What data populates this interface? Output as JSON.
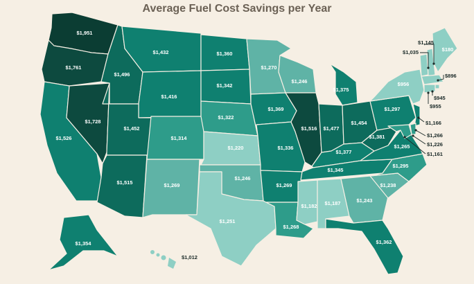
{
  "title": "Average Fuel Cost Savings per Year",
  "credit": "",
  "colors": {
    "background": "#f6efe4",
    "lightest": "#8ecfc4",
    "light": "#5fb3a6",
    "mid": "#2e9c8a",
    "dark": "#0f8070",
    "darker": "#0d6b5c",
    "darkest": "#0b3d33"
  },
  "states": [
    {
      "id": "WA",
      "label": "$1,951"
    },
    {
      "id": "OR",
      "label": "$1,761"
    },
    {
      "id": "CA",
      "label": "$1,526"
    },
    {
      "id": "NV",
      "label": "$1,728"
    },
    {
      "id": "ID",
      "label": "$1,496"
    },
    {
      "id": "MT",
      "label": "$1,432"
    },
    {
      "id": "WY",
      "label": "$1,416"
    },
    {
      "id": "UT",
      "label": "$1,452"
    },
    {
      "id": "AZ",
      "label": "$1,515"
    },
    {
      "id": "CO",
      "label": "$1,314"
    },
    {
      "id": "NM",
      "label": "$1,269"
    },
    {
      "id": "ND",
      "label": "$1,360"
    },
    {
      "id": "SD",
      "label": "$1,342"
    },
    {
      "id": "NE",
      "label": "$1,322"
    },
    {
      "id": "KS",
      "label": "$1,220"
    },
    {
      "id": "OK",
      "label": "$1,246"
    },
    {
      "id": "TX",
      "label": "$1,251"
    },
    {
      "id": "MN",
      "label": "$1,270"
    },
    {
      "id": "IA",
      "label": "$1,369"
    },
    {
      "id": "MO",
      "label": "$1,336"
    },
    {
      "id": "AR",
      "label": "$1,269"
    },
    {
      "id": "LA",
      "label": "$1,268"
    },
    {
      "id": "WI",
      "label": "$1,246"
    },
    {
      "id": "IL",
      "label": "$1,516"
    },
    {
      "id": "MI",
      "label": "$1,375"
    },
    {
      "id": "IN",
      "label": "$1,477"
    },
    {
      "id": "OH",
      "label": "$1,454"
    },
    {
      "id": "KY",
      "label": "$1,377"
    },
    {
      "id": "TN",
      "label": "$1,345"
    },
    {
      "id": "MS",
      "label": "$1,182"
    },
    {
      "id": "AL",
      "label": "$1,187"
    },
    {
      "id": "GA",
      "label": "$1,243"
    },
    {
      "id": "FL",
      "label": "$1,362"
    },
    {
      "id": "SC",
      "label": "$1,238"
    },
    {
      "id": "NC",
      "label": "$1,295"
    },
    {
      "id": "VA",
      "label": "$1,265"
    },
    {
      "id": "WV",
      "label": "$1,381"
    },
    {
      "id": "PA",
      "label": "$1,297"
    },
    {
      "id": "NY",
      "label": "$956"
    },
    {
      "id": "ME",
      "label": "$180"
    },
    {
      "id": "AK",
      "label": "$1,354"
    },
    {
      "id": "HI",
      "label": "$1,012"
    }
  ],
  "callouts": [
    {
      "id": "VT",
      "label": "$1,145"
    },
    {
      "id": "NH",
      "label": "$1,035"
    },
    {
      "id": "MA",
      "label": "$896"
    },
    {
      "id": "RI",
      "label": "$945"
    },
    {
      "id": "CT",
      "label": "$955"
    },
    {
      "id": "NJ",
      "label": "$1,166"
    },
    {
      "id": "DE",
      "label": "$1,266"
    },
    {
      "id": "MD",
      "label": "$1,226"
    },
    {
      "id": "DC",
      "label": "$1,161"
    }
  ]
}
